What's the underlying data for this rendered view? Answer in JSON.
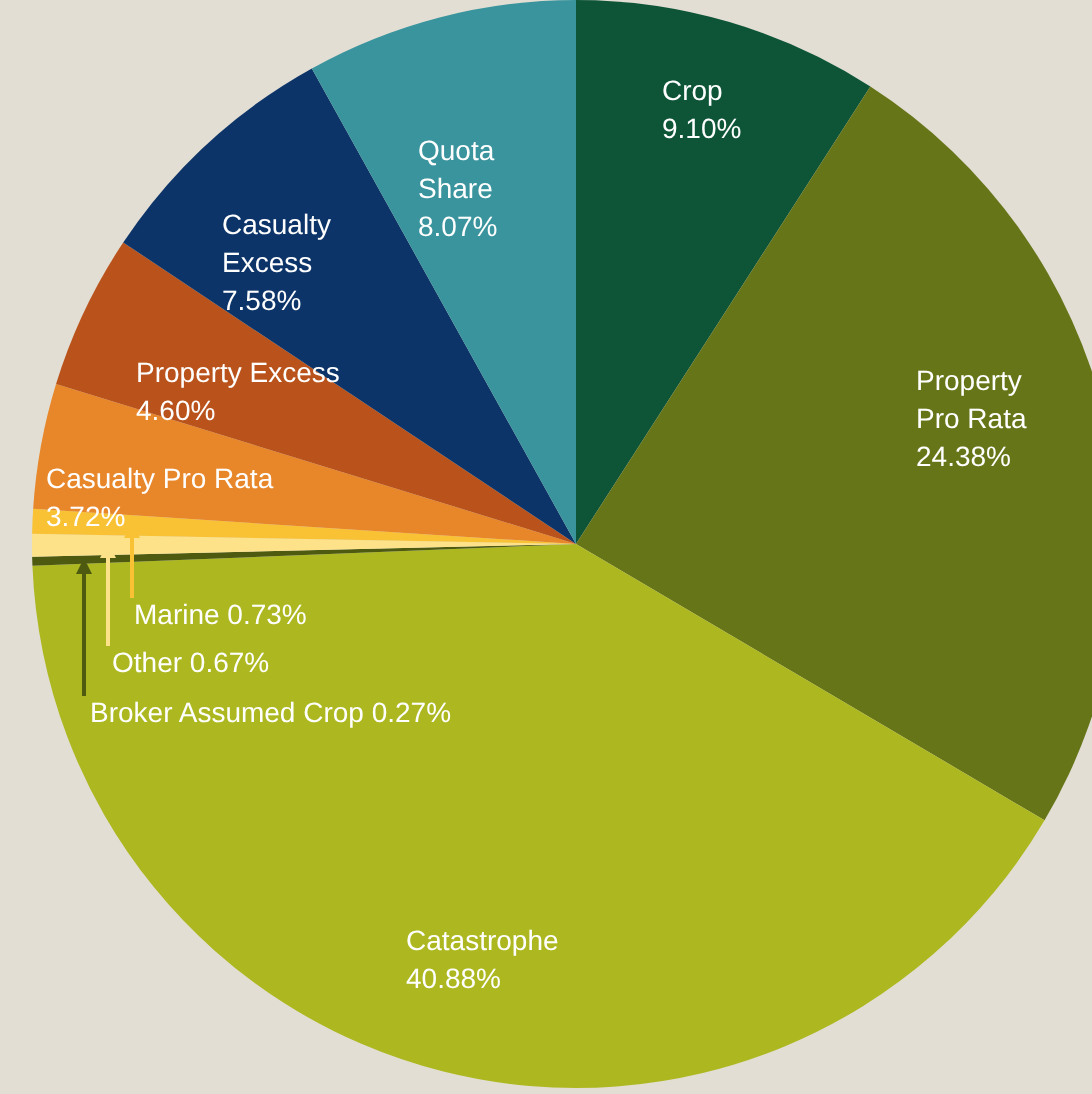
{
  "chart_data": {
    "type": "pie",
    "categories": [
      "Crop",
      "Property Pro Rata",
      "Catastrophe",
      "Broker Assumed Crop",
      "Other",
      "Marine",
      "Casualty Pro Rata",
      "Property Excess",
      "Casualty Excess",
      "Quota Share"
    ],
    "values": [
      9.1,
      24.38,
      40.88,
      0.27,
      0.67,
      0.73,
      3.72,
      4.6,
      7.58,
      8.07
    ],
    "value_labels": [
      "9.10%",
      "24.38%",
      "40.88%",
      "0.27%",
      "0.67%",
      "0.73%",
      "3.72%",
      "4.60%",
      "7.58%",
      "8.07%"
    ],
    "colors": [
      "#0e5538",
      "#677519",
      "#adb820",
      "#4d5a10",
      "#fde28a",
      "#f9c234",
      "#e8872a",
      "#b9531b",
      "#0d3468",
      "#3a949d"
    ]
  }
}
